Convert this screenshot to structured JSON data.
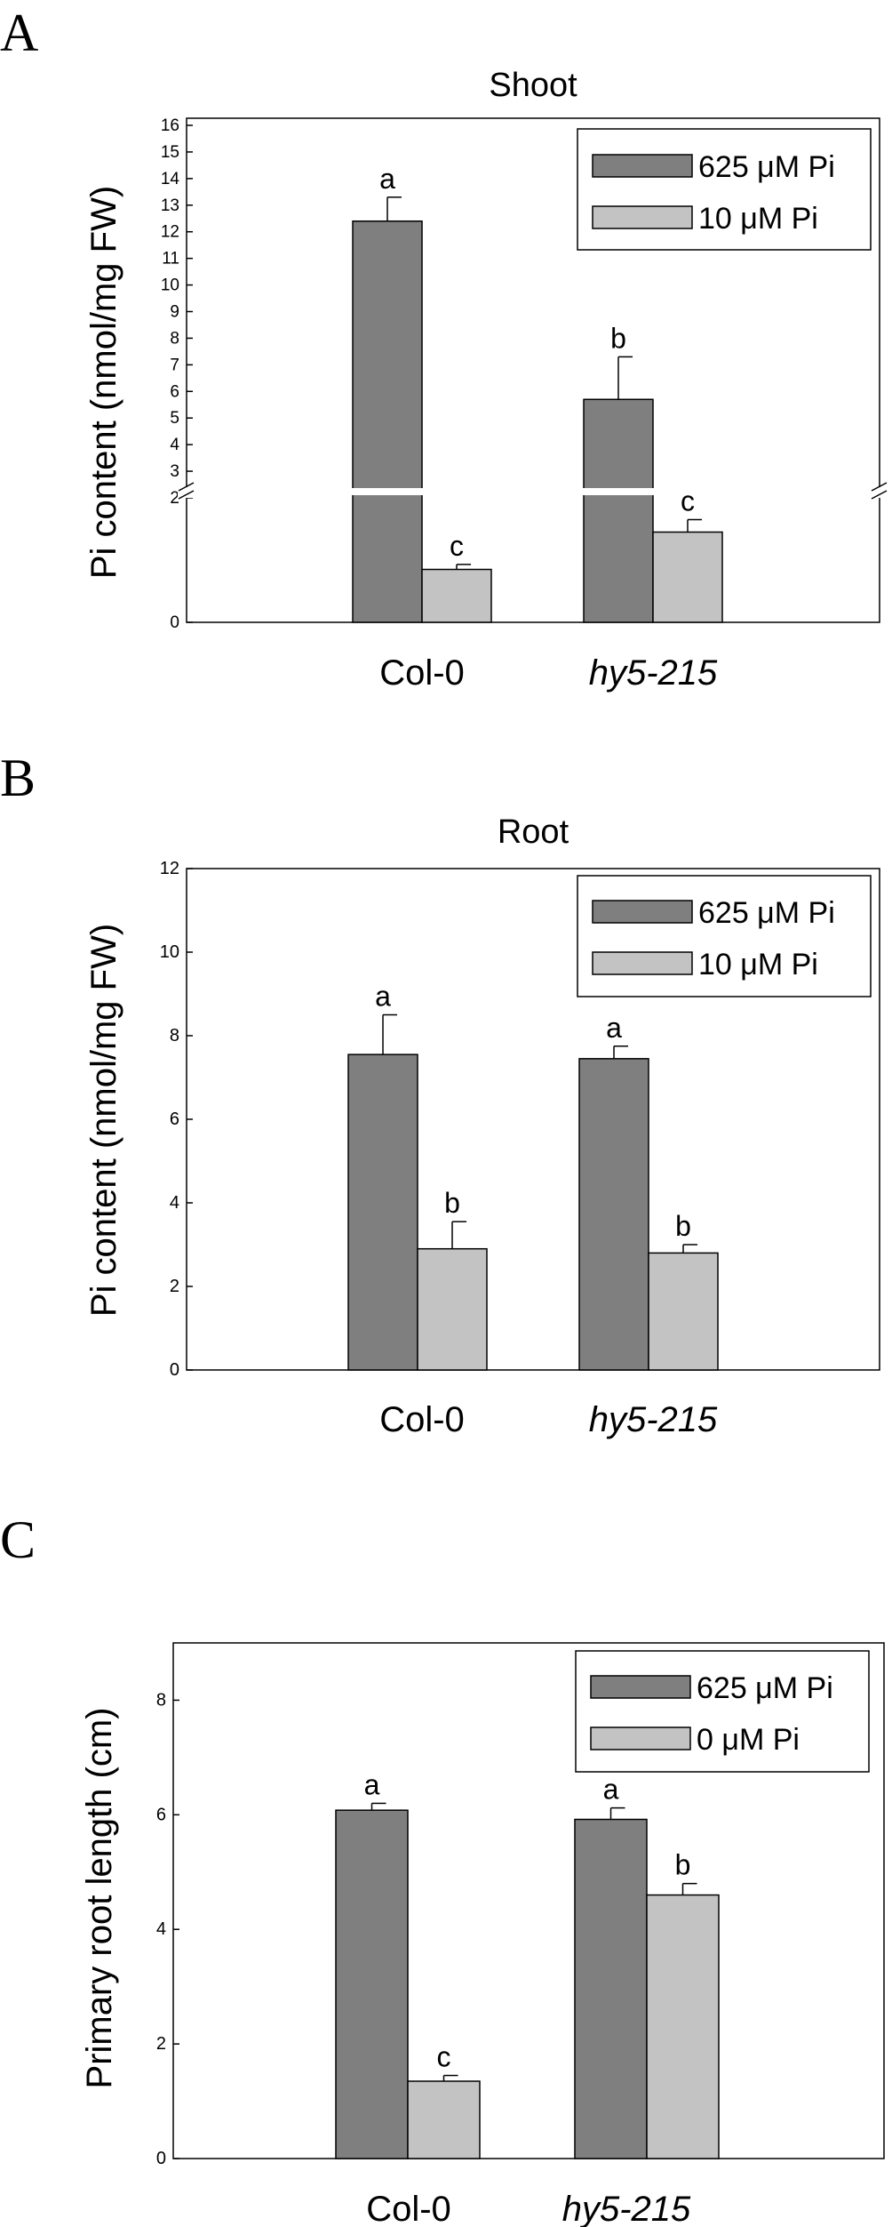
{
  "chart_data": [
    {
      "panel": "A",
      "type": "bar",
      "title": "Shoot",
      "ylabel": "Pi content (nmol/mg FW)",
      "categories": [
        "Col-0",
        "hy5-215"
      ],
      "category_italic": [
        false,
        true
      ],
      "series": [
        {
          "name": "625 μM Pi",
          "values": [
            12.4,
            5.7
          ],
          "errors": [
            0.9,
            1.6
          ],
          "labels": [
            "a",
            "b"
          ],
          "color": "#7f7f7f"
        },
        {
          "name": "10 μM Pi",
          "values": [
            0.85,
            1.45
          ],
          "errors": [
            0.08,
            0.2
          ],
          "labels": [
            "c",
            "c"
          ],
          "color": "#c3c3c3"
        }
      ],
      "axis_break": {
        "lower": [
          0,
          2
        ],
        "upper": [
          2,
          16
        ]
      },
      "yticks": [
        "0",
        "2",
        "3",
        "4",
        "5",
        "6",
        "7",
        "8",
        "9",
        "10",
        "11",
        "12",
        "13",
        "14",
        "15",
        "16"
      ],
      "ylim": [
        0,
        16
      ],
      "legend": "top-right"
    },
    {
      "panel": "B",
      "type": "bar",
      "title": "Root",
      "ylabel": "Pi content (nmol/mg FW)",
      "categories": [
        "Col-0",
        "hy5-215"
      ],
      "category_italic": [
        false,
        true
      ],
      "series": [
        {
          "name": "625 μM Pi",
          "values": [
            7.55,
            7.45
          ],
          "errors": [
            0.95,
            0.3
          ],
          "labels": [
            "a",
            "a"
          ],
          "color": "#7f7f7f"
        },
        {
          "name": "10 μM Pi",
          "values": [
            2.9,
            2.8
          ],
          "errors": [
            0.65,
            0.2
          ],
          "labels": [
            "b",
            "b"
          ],
          "color": "#c3c3c3"
        }
      ],
      "yticks": [
        "0",
        "2",
        "4",
        "6",
        "8",
        "10",
        "12"
      ],
      "ylim": [
        0,
        12
      ],
      "legend": "top-right"
    },
    {
      "panel": "C",
      "type": "bar",
      "title": "",
      "ylabel": "Primary root length (cm)",
      "categories": [
        "Col-0",
        "hy5-215"
      ],
      "category_italic": [
        false,
        true
      ],
      "series": [
        {
          "name": "625 μM Pi",
          "values": [
            6.08,
            5.92
          ],
          "errors": [
            0.12,
            0.2
          ],
          "labels": [
            "a",
            "a"
          ],
          "color": "#7f7f7f"
        },
        {
          "name": "0 μM Pi",
          "values": [
            1.35,
            4.6
          ],
          "errors": [
            0.1,
            0.2
          ],
          "labels": [
            "c",
            "b"
          ],
          "color": "#c3c3c3"
        }
      ],
      "yticks": [
        "0",
        "2",
        "4",
        "6",
        "8"
      ],
      "ylim": [
        0,
        9
      ],
      "legend": "top-right"
    }
  ]
}
